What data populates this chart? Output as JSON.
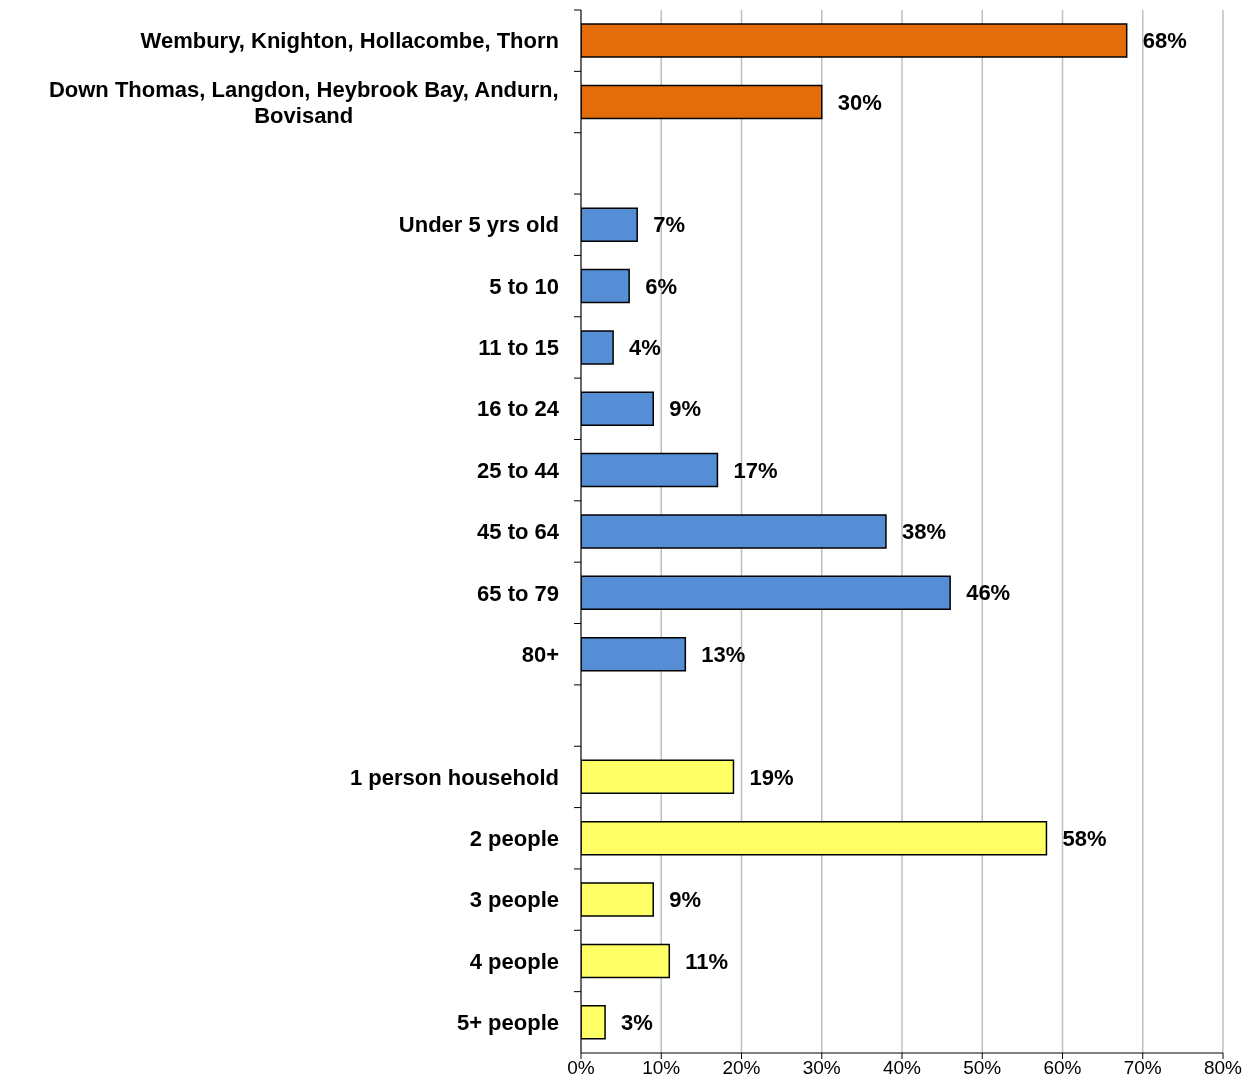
{
  "chart_data": {
    "type": "bar",
    "orientation": "horizontal",
    "categories": [
      "Wembury, Knighton, Hollacombe, Thorn",
      "Down Thomas, Langdon, Heybrook Bay, Andurn, Bovisand",
      null,
      "Under 5 yrs old",
      "5 to 10",
      "11 to 15",
      "16 to 24",
      "25 to 44",
      "45 to 64",
      "65 to 79",
      "80+",
      null,
      "1 person household",
      "2 people",
      "3 people",
      "4 people",
      "5+ people"
    ],
    "values": [
      68,
      30,
      null,
      7,
      6,
      4,
      9,
      17,
      38,
      46,
      13,
      null,
      19,
      58,
      9,
      11,
      3
    ],
    "colors": [
      "#e46c0a",
      "#e46c0a",
      null,
      "#558ed5",
      "#558ed5",
      "#558ed5",
      "#558ed5",
      "#558ed5",
      "#558ed5",
      "#558ed5",
      "#558ed5",
      null,
      "#ffff66",
      "#ffff66",
      "#ffff66",
      "#ffff66",
      "#ffff66"
    ],
    "value_labels": [
      "68%",
      "30%",
      null,
      "7%",
      "6%",
      "4%",
      "9%",
      "17%",
      "38%",
      "46%",
      "13%",
      null,
      "19%",
      "58%",
      "9%",
      "11%",
      "3%"
    ],
    "xlim": [
      0,
      80
    ],
    "xticks": [
      {
        "value": 0,
        "label": "0%"
      },
      {
        "value": 10,
        "label": "10%"
      },
      {
        "value": 20,
        "label": "20%"
      },
      {
        "value": 30,
        "label": "30%"
      },
      {
        "value": 40,
        "label": "40%"
      },
      {
        "value": 50,
        "label": "50%"
      },
      {
        "value": 60,
        "label": "60%"
      },
      {
        "value": 70,
        "label": "70%"
      },
      {
        "value": 80,
        "label": "80%"
      }
    ],
    "grid": "x"
  }
}
